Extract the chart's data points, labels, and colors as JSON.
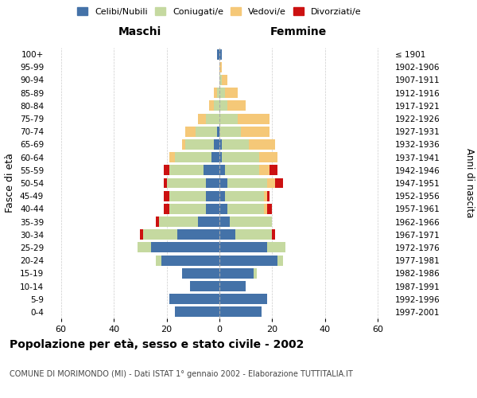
{
  "age_groups": [
    "0-4",
    "5-9",
    "10-14",
    "15-19",
    "20-24",
    "25-29",
    "30-34",
    "35-39",
    "40-44",
    "45-49",
    "50-54",
    "55-59",
    "60-64",
    "65-69",
    "70-74",
    "75-79",
    "80-84",
    "85-89",
    "90-94",
    "95-99",
    "100+"
  ],
  "birth_years": [
    "1997-2001",
    "1992-1996",
    "1987-1991",
    "1982-1986",
    "1977-1981",
    "1972-1976",
    "1967-1971",
    "1962-1966",
    "1957-1961",
    "1952-1956",
    "1947-1951",
    "1942-1946",
    "1937-1941",
    "1932-1936",
    "1927-1931",
    "1922-1926",
    "1917-1921",
    "1912-1916",
    "1907-1911",
    "1902-1906",
    "≤ 1901"
  ],
  "males": {
    "celibe": [
      17,
      19,
      11,
      14,
      22,
      26,
      16,
      8,
      5,
      5,
      5,
      6,
      3,
      2,
      1,
      0,
      0,
      0,
      0,
      0,
      1
    ],
    "coniugato": [
      0,
      0,
      0,
      0,
      2,
      5,
      13,
      15,
      14,
      14,
      15,
      13,
      14,
      11,
      8,
      5,
      2,
      1,
      0,
      0,
      0
    ],
    "vedovo": [
      0,
      0,
      0,
      0,
      0,
      0,
      0,
      0,
      0,
      0,
      0,
      0,
      2,
      1,
      4,
      3,
      2,
      1,
      0,
      0,
      0
    ],
    "divorziato": [
      0,
      0,
      0,
      0,
      0,
      0,
      1,
      1,
      2,
      2,
      1,
      2,
      0,
      0,
      0,
      0,
      0,
      0,
      0,
      0,
      0
    ]
  },
  "females": {
    "nubile": [
      16,
      18,
      10,
      13,
      22,
      18,
      6,
      4,
      3,
      2,
      3,
      2,
      1,
      1,
      0,
      0,
      0,
      0,
      0,
      0,
      1
    ],
    "coniugata": [
      0,
      0,
      0,
      1,
      2,
      7,
      14,
      16,
      14,
      15,
      15,
      13,
      14,
      10,
      8,
      7,
      3,
      2,
      1,
      0,
      0
    ],
    "vedova": [
      0,
      0,
      0,
      0,
      0,
      0,
      0,
      0,
      1,
      1,
      3,
      4,
      7,
      10,
      11,
      12,
      7,
      5,
      2,
      1,
      0
    ],
    "divorziata": [
      0,
      0,
      0,
      0,
      0,
      0,
      1,
      0,
      2,
      1,
      3,
      3,
      0,
      0,
      0,
      0,
      0,
      0,
      0,
      0,
      0
    ]
  },
  "colors": {
    "celibe": "#4472a8",
    "coniugato": "#c5d9a0",
    "vedovo": "#f5c878",
    "divorziato": "#cc1111"
  },
  "xlim": 65,
  "title": "Popolazione per età, sesso e stato civile - 2002",
  "subtitle": "COMUNE DI MORIMONDO (MI) - Dati ISTAT 1° gennaio 2002 - Elaborazione TUTTITALIA.IT",
  "xlabel_left": "Maschi",
  "xlabel_right": "Femmine",
  "ylabel": "Fasce di età",
  "ylabel_right": "Anni di nascita",
  "legend_labels": [
    "Celibi/Nubili",
    "Coniugati/e",
    "Vedovi/e",
    "Divorziati/e"
  ],
  "background_color": "#ffffff",
  "grid_color": "#cccccc",
  "bar_height": 0.8
}
